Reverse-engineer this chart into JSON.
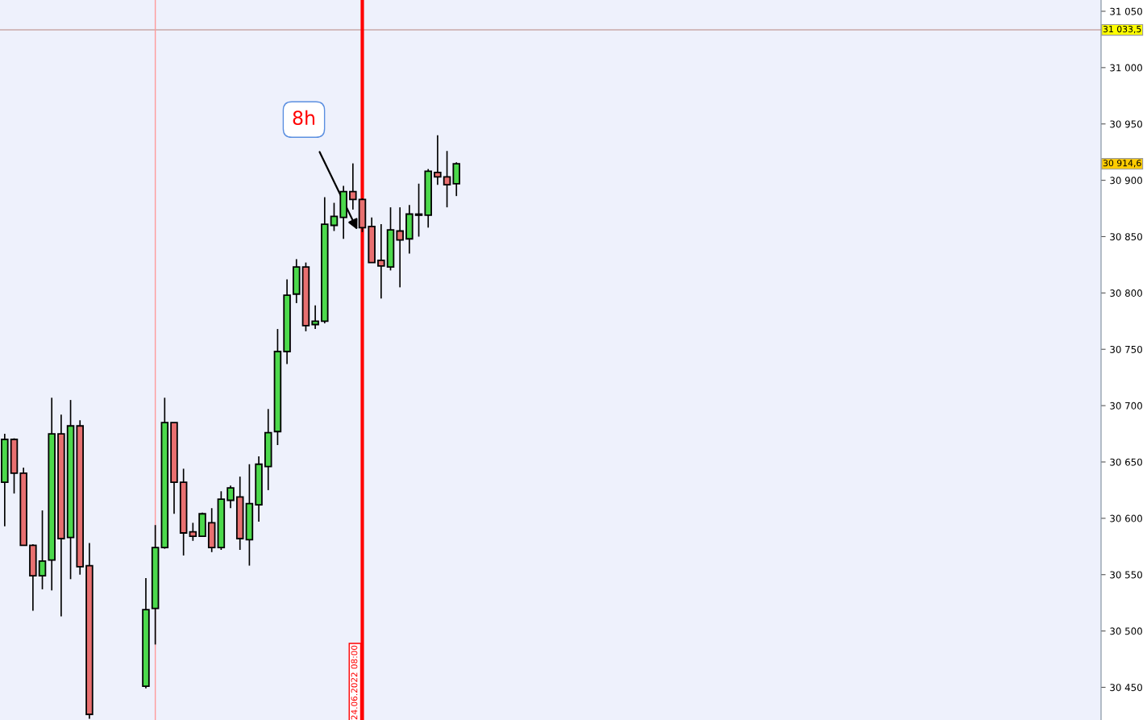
{
  "chart_data": {
    "type": "candlestick",
    "categories": [
      null,
      null,
      null,
      null,
      null,
      null,
      null,
      null,
      null,
      null,
      null,
      null,
      null,
      null,
      null,
      null,
      null,
      null,
      null,
      null,
      null,
      null,
      null,
      null,
      null,
      null,
      null,
      null,
      null,
      null,
      null,
      null,
      null,
      null,
      null,
      null,
      null,
      null,
      null,
      null,
      null,
      null,
      null,
      null,
      null,
      null,
      null,
      null,
      null,
      null,
      null,
      null,
      null,
      null,
      null,
      null,
      null,
      null,
      null,
      null,
      null,
      null,
      null,
      null,
      null,
      null,
      null,
      null,
      null,
      null,
      null,
      null,
      null,
      null,
      null,
      null,
      null,
      null,
      null,
      null,
      null,
      null,
      null,
      null,
      null,
      null,
      null,
      null,
      null,
      null,
      null,
      null,
      null,
      null,
      null,
      null,
      null,
      null,
      null,
      null,
      null,
      null,
      null,
      null,
      null,
      null,
      null,
      null,
      null,
      null,
      null,
      null,
      null,
      null,
      null,
      null,
      null
    ],
    "ohlc": [
      [
        30632,
        30675,
        30593,
        30670
      ],
      [
        30670,
        30671,
        30622,
        30640
      ],
      [
        30640,
        30645,
        30576,
        30576
      ],
      [
        30576,
        30577,
        30518,
        30549
      ],
      [
        30549,
        30607,
        30537,
        30562
      ],
      [
        30563,
        30707,
        30536,
        30675
      ],
      [
        30675,
        30692,
        30513,
        30582
      ],
      [
        30583,
        30705,
        30546,
        30682
      ],
      [
        30682,
        30687,
        30550,
        30557
      ],
      [
        30558,
        30578,
        30422,
        30426
      ],
      null,
      null,
      null,
      null,
      null,
      [
        30451,
        30547,
        30449,
        30519
      ],
      [
        30520,
        30594,
        30488,
        30574
      ],
      [
        30574,
        30707,
        30573,
        30685
      ],
      [
        30685,
        30685,
        30604,
        30632
      ],
      [
        30632,
        30644,
        30567,
        30587
      ],
      [
        30588,
        30596,
        30580,
        30584
      ],
      [
        30584,
        30605,
        30584,
        30604
      ],
      [
        30596,
        30609,
        30570,
        30574
      ],
      [
        30574,
        30624,
        30572,
        30617
      ],
      [
        30616,
        30629,
        30609,
        30627
      ],
      [
        30619,
        30637,
        30572,
        30582
      ],
      [
        30581,
        30648,
        30558,
        30613
      ],
      [
        30612,
        30655,
        30597,
        30648
      ],
      [
        30646,
        30697,
        30625,
        30676
      ],
      [
        30677,
        30768,
        30665,
        30748
      ],
      [
        30748,
        30812,
        30737,
        30798
      ],
      [
        30799,
        30830,
        30791,
        30823
      ],
      [
        30823,
        30827,
        30766,
        30771
      ],
      [
        30772,
        30789,
        30768,
        30775
      ],
      [
        30775,
        30885,
        30773,
        30861
      ],
      [
        30860,
        30880,
        30855,
        30868
      ],
      [
        30867,
        30895,
        30848,
        30890
      ],
      [
        30890,
        30915,
        30874,
        30883
      ],
      [
        30883,
        30884,
        30854,
        30858
      ],
      [
        30859,
        30867,
        30827,
        30827
      ],
      [
        30829,
        30861,
        30795,
        30824
      ],
      [
        30823,
        30876,
        30820,
        30856
      ],
      [
        30855,
        30876,
        30805,
        30847
      ],
      [
        30848,
        30878,
        30835,
        30870
      ],
      [
        30869,
        30897,
        30850,
        30870
      ],
      [
        30869,
        30910,
        30858,
        30908
      ],
      [
        30907,
        30940,
        30896,
        30903
      ],
      [
        30903,
        30926,
        30876,
        30896
      ],
      [
        30897,
        30916,
        30886,
        30914.6
      ],
      null,
      null,
      null,
      null,
      null,
      null,
      null,
      null,
      null,
      null,
      null,
      null,
      null,
      null,
      null,
      null,
      null,
      null,
      null,
      null,
      null,
      null,
      null,
      null,
      null,
      null,
      null,
      null,
      null,
      null,
      null,
      null,
      null,
      null,
      null,
      null,
      null,
      null,
      null,
      null,
      null,
      null,
      null,
      null,
      null,
      null,
      null,
      null,
      null,
      null,
      null,
      null,
      null,
      null,
      null,
      null,
      null,
      null,
      null,
      null,
      null,
      null,
      null,
      null,
      null,
      null,
      null,
      null
    ],
    "colors": [
      "#4cd94c",
      "#e87070",
      "#e87070",
      "#e87070",
      "#4cd94c",
      "#4cd94c",
      "#e87070",
      "#4cd94c",
      "#e87070",
      "#e87070",
      null,
      null,
      null,
      null,
      null,
      "#4cd94c",
      "#4cd94c",
      "#4cd94c",
      "#e87070",
      "#e87070",
      "#e87070",
      "#4cd94c",
      "#e87070",
      "#4cd94c",
      "#4cd94c",
      "#e87070",
      "#4cd94c",
      "#4cd94c",
      "#4cd94c",
      "#4cd94c",
      "#4cd94c",
      "#4cd94c",
      "#e87070",
      "#4cd94c",
      "#4cd94c",
      "#4cd94c",
      "#4cd94c",
      "#e87070",
      "#e87070",
      "#e87070",
      "#e87070",
      "#4cd94c",
      "#e87070",
      "#4cd94c",
      "#4cd94c",
      "#4cd94c",
      "#e87070",
      "#e87070",
      "#4cd94c",
      null,
      null,
      null,
      null,
      null,
      null,
      null,
      null,
      null,
      null,
      null,
      null,
      null,
      null,
      null,
      null,
      null,
      null,
      null,
      null,
      null,
      null,
      null,
      null,
      null,
      null,
      null,
      null,
      null,
      null,
      null,
      null,
      null,
      null,
      null,
      null,
      null,
      null,
      null,
      null,
      null,
      null,
      null,
      null,
      null,
      null,
      null,
      null,
      null,
      null,
      null,
      null,
      null,
      null,
      null,
      null,
      null,
      null,
      null,
      null,
      null,
      null,
      null,
      null,
      null,
      null,
      null,
      null
    ],
    "ylim": [
      30421,
      31060
    ],
    "yticks": [
      {
        "value": 30450,
        "label": "30 450"
      },
      {
        "value": 30500,
        "label": "30 500"
      },
      {
        "value": 30550,
        "label": "30 550"
      },
      {
        "value": 30600,
        "label": "30 600"
      },
      {
        "value": 30650,
        "label": "30 650"
      },
      {
        "value": 30700,
        "label": "30 700"
      },
      {
        "value": 30750,
        "label": "30 750"
      },
      {
        "value": 30800,
        "label": "30 800"
      },
      {
        "value": 30850,
        "label": "30 850"
      },
      {
        "value": 30900,
        "label": "30 900"
      },
      {
        "value": 30950,
        "label": "30 950"
      },
      {
        "value": 31000,
        "label": "31 000"
      },
      {
        "value": 31050,
        "label": "31 050"
      }
    ],
    "ref_lines": [
      {
        "axis": "y",
        "value": 31033.5,
        "label": "31 033,5",
        "color": "#c8a8a8"
      }
    ],
    "annotations": [
      "8h",
      "30 914,6",
      "24.06.2022 08:00"
    ],
    "tick_labels": "y",
    "grid": false,
    "legend": false
  }
}
